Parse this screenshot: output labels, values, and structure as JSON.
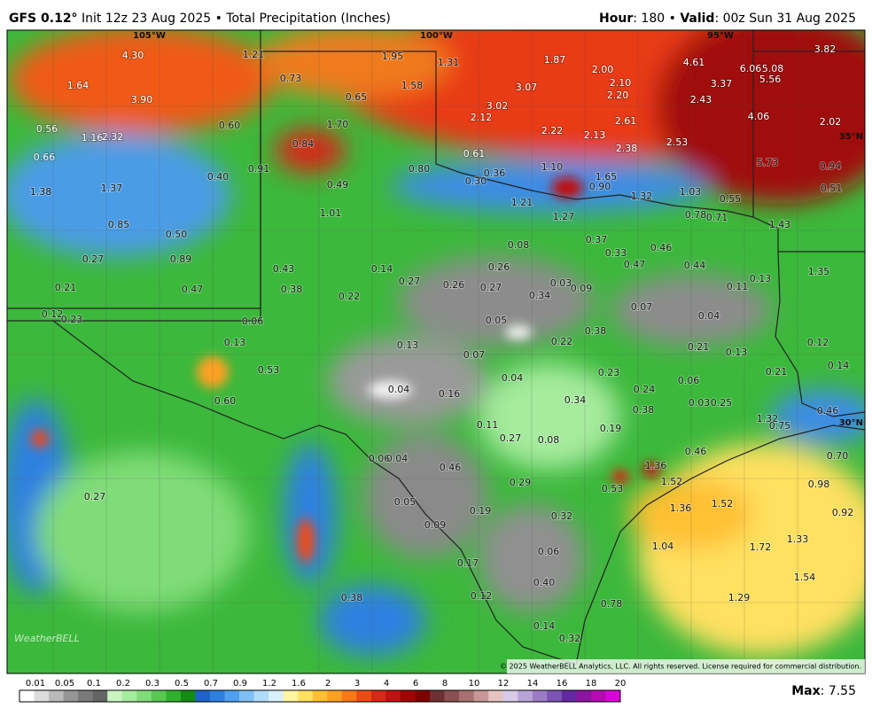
{
  "header": {
    "model": "GFS 0.12°",
    "subtitle": "Init 12z 23 Aug 2025 • Total Precipitation (Inches)",
    "hour_key": "Hour",
    "hour_value": ": 180 •",
    "valid_key": "Valid",
    "valid_value": ": 00z Sun 31 Aug 2025"
  },
  "map": {
    "graticule": [
      "105°W",
      "100°W",
      "95°W",
      "35°N",
      "30°N"
    ],
    "labels": [
      "4.30",
      "1.64",
      "3.90",
      "0.56",
      "1.16",
      "2.32",
      "0.66",
      "0.60",
      "1.38",
      "1.37",
      "0.40",
      "0.85",
      "0.50",
      "0.27",
      "0.89",
      "0.21",
      "0.47",
      "0.12",
      "0.23",
      "1.21",
      "0.73",
      "0.65",
      "1.95",
      "1.31",
      "1.58",
      "1.70",
      "0.84",
      "0.91",
      "0.49",
      "0.80",
      "1.01",
      "0.43",
      "0.38",
      "0.14",
      "0.22",
      "0.27",
      "0.26",
      "0.27",
      "0.26",
      "0.08",
      "0.34",
      "0.03",
      "0.09",
      "0.05",
      "0.06",
      "0.13",
      "0.13",
      "0.07",
      "0.22",
      "0.38",
      "0.07",
      "0.04",
      "0.11",
      "0.13",
      "0.21",
      "0.13",
      "0.12",
      "0.14",
      "0.21",
      "1.87",
      "2.00",
      "2.10",
      "2.20",
      "3.07",
      "3.02",
      "2.12",
      "2.22",
      "2.13",
      "2.61",
      "2.38",
      "2.53",
      "2.43",
      "3.37",
      "4.61",
      "6.06",
      "5.08",
      "5.56",
      "3.82",
      "4.06",
      "2.02",
      "5.73",
      "0.94",
      "0.51",
      "1.10",
      "1.65",
      "0.90",
      "1.32",
      "1.03",
      "0.55",
      "0.78",
      "0.71",
      "1.43",
      "0.61",
      "0.36",
      "0.30",
      "1.21",
      "1.27",
      "0.37",
      "0.33",
      "0.46",
      "0.47",
      "0.44",
      "1.35",
      "0.53",
      "0.60",
      "0.04",
      "0.16",
      "0.04",
      "0.23",
      "0.24",
      "0.34",
      "0.38",
      "0.06",
      "0.03",
      "0.25",
      "1.32",
      "0.75",
      "0.46",
      "0.11",
      "0.27",
      "0.19",
      "0.08",
      "0.70",
      "0.46",
      "0.06",
      "0.04",
      "1.36",
      "0.46",
      "0.29",
      "0.53",
      "1.52",
      "1.36",
      "1.52",
      "0.98",
      "0.92",
      "0.05",
      "0.19",
      "0.32",
      "0.09",
      "0.27",
      "1.33",
      "1.04",
      "1.72",
      "0.06",
      "0.17",
      "1.54",
      "0.40",
      "0.12",
      "1.29",
      "0.38",
      "0.78",
      "0.14",
      "0.32"
    ],
    "logo": "WeatherBELL",
    "copyright": "© 2025 WeatherBELL Analytics, LLC. All rights reserved. License required for commercial distribution."
  },
  "legend": {
    "ticks": [
      "0.01",
      "0.05",
      "0.1",
      "0.2",
      "0.3",
      "0.5",
      "0.7",
      "0.9",
      "1.2",
      "1.6",
      "2",
      "3",
      "4",
      "6",
      "8",
      "10",
      "12",
      "14",
      "16",
      "18",
      "20"
    ],
    "colors": [
      "#ffffff",
      "#dcdcdc",
      "#b9b9b9",
      "#969696",
      "#7a7a7a",
      "#646464",
      "#c8f5c0",
      "#a6eb9e",
      "#80dc78",
      "#58c852",
      "#2eb02e",
      "#148c14",
      "#1e64c8",
      "#2e80e0",
      "#50a0f0",
      "#80c0f5",
      "#b0dcfa",
      "#d8f0fc",
      "#fff5a0",
      "#ffe060",
      "#ffc030",
      "#ffa020",
      "#ff7814",
      "#f04a14",
      "#d82818",
      "#c01010",
      "#a00404",
      "#800000",
      "#6e3030",
      "#8c5050",
      "#a87070",
      "#c89696",
      "#e6c3c3",
      "#d6cbe8",
      "#b8a4d8",
      "#9a7cc6",
      "#7c54b4",
      "#6428a0",
      "#8c14a0",
      "#b40ab4",
      "#dc00dc"
    ],
    "max_key": "Max",
    "max_value": ": 7.55"
  }
}
